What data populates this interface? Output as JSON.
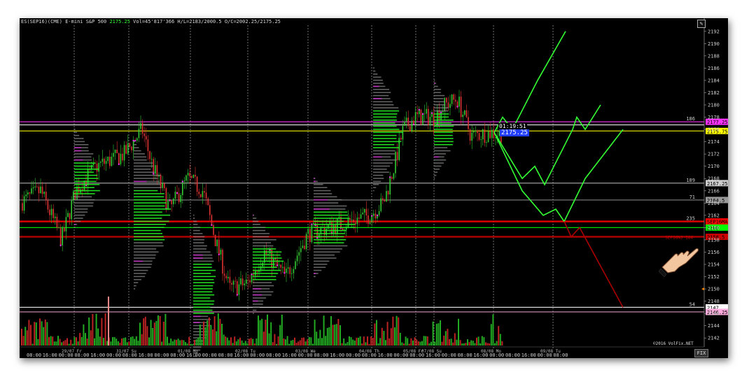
{
  "header": {
    "symbol": "ES(SEP16)(CME) E-mini S&P 500",
    "last": "2175.25",
    "stats": "Vol=45'817'366 H/L=2183/2000.5 O/C=2002.25/2175.25"
  },
  "timer": "01:19:51",
  "current_price_tag": "2175.25",
  "copyright": "©2016 VolFix.NET",
  "fix_label": "FIX",
  "pen_icon": "pencil-icon",
  "hand_icon": "pointing-hand-icon",
  "colors": {
    "background": "#000000",
    "bull": "#33cc33",
    "bear": "#cc2222",
    "profile": "#22ff22",
    "projection": "#33ff33",
    "projection_bear": "#aa0000",
    "yellow_level": "#ffff00",
    "magenta_level": "#ff33ff"
  },
  "chart_data": {
    "type": "candlestick",
    "instrument": "ES(SEP16)",
    "ylim": [
      2141,
      2193
    ],
    "y_ticks": [
      2142,
      2144,
      2146,
      2148,
      2150,
      2152,
      2154,
      2156,
      2158,
      2160,
      2162,
      2164,
      2166,
      2168,
      2170,
      2172,
      2174,
      2176,
      2178,
      2180,
      2182,
      2184,
      2186,
      2188,
      2190,
      2192
    ],
    "day_separators": [
      {
        "label": "29/07 Fr",
        "session_index": 0
      },
      {
        "label": "31/07 Su",
        "session_index": 1
      },
      {
        "label": "01/08 Mo",
        "session_index": 2
      },
      {
        "label": "02/08 Tu",
        "session_index": 3
      },
      {
        "label": "03/08 We",
        "session_index": 4
      },
      {
        "label": "04/08 Th",
        "session_index": 5
      },
      {
        "label": "05/08 Fr",
        "session_index": 6
      },
      {
        "label": "07/08 Su",
        "session_index": 7
      },
      {
        "label": "08/08 Mo",
        "session_index": 8
      },
      {
        "label": "09/08 Tu",
        "session_index": 9
      }
    ],
    "x_time_labels": [
      "08:00",
      "16:00",
      "00:00",
      "08:00",
      "16:00",
      "00:00",
      "08:00",
      "16:00",
      "00:00",
      "08:00",
      "16:00",
      "00:00",
      "08:00",
      "16:00",
      "00:00",
      "08:00",
      "16:00",
      "00:00",
      "08:00",
      "16:00",
      "00:00",
      "08:00",
      "16:00",
      "00:00",
      "08:00",
      "16:00",
      "00:00",
      "08:00",
      "16:00",
      "00:00",
      "08:00",
      "16:00",
      "00:00",
      "08:00",
      "16:00"
    ],
    "levels": [
      {
        "price": 2177.25,
        "color": "#ff33ff",
        "label": "2177.25",
        "note": "186"
      },
      {
        "price": 2176.75,
        "color": "#ffffff",
        "label": "",
        "note": ""
      },
      {
        "price": 2175.75,
        "color": "#ffff00",
        "label": "2175.75",
        "note": ""
      },
      {
        "price": 2167.25,
        "color": "#cccccc",
        "label": "2167.25",
        "note": "189"
      },
      {
        "price": 2164.5,
        "color": "#999999",
        "label": "2164.5",
        "note": "71"
      },
      {
        "price": 2161.0,
        "color": "#ff0000",
        "label": "SEP16MAX",
        "note": "235"
      },
      {
        "price": 2160.0,
        "color": "#00ff00",
        "label": "2160",
        "note": ""
      },
      {
        "price": 2158.5,
        "color": "#cc0000",
        "label": "SEP16NJ 184",
        "note": ""
      },
      {
        "price": 2147.0,
        "color": "#ffffff",
        "label": "2147",
        "note": "54"
      },
      {
        "price": 2146.25,
        "color": "#ffaadd",
        "label": "2146.25",
        "note": ""
      }
    ],
    "projections": [
      {
        "color": "#33ff33",
        "points": [
          [
            0,
            2175.5
          ],
          [
            1,
            2178
          ],
          [
            2,
            2176
          ],
          [
            3,
            2184
          ],
          [
            4,
            2192
          ]
        ]
      },
      {
        "color": "#33ff33",
        "points": [
          [
            0,
            2175.5
          ],
          [
            1,
            2168
          ],
          [
            2,
            2170
          ],
          [
            3,
            2167
          ],
          [
            4,
            2176
          ],
          [
            5,
            2178
          ],
          [
            6,
            2176
          ],
          [
            7,
            2180
          ]
        ]
      },
      {
        "color": "#33ff33",
        "points": [
          [
            0,
            2175.5
          ],
          [
            1,
            2166
          ],
          [
            2,
            2162
          ],
          [
            3,
            2163
          ],
          [
            4,
            2161
          ],
          [
            5,
            2168
          ],
          [
            6,
            2176
          ]
        ]
      },
      {
        "color": "#aa0000",
        "points": [
          [
            0,
            2161
          ],
          [
            1,
            2158.5
          ],
          [
            2,
            2160
          ],
          [
            3,
            2147
          ]
        ]
      }
    ],
    "last_price": 2175.25
  }
}
